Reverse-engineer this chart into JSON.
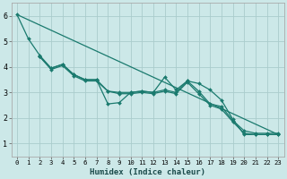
{
  "xlabel": "Humidex (Indice chaleur)",
  "bg_color": "#cce8e8",
  "grid_color": "#aacccc",
  "line_color": "#1a7a6e",
  "xlim": [
    -0.5,
    23.5
  ],
  "ylim": [
    0.5,
    6.5
  ],
  "yticks": [
    1,
    2,
    3,
    4,
    5,
    6
  ],
  "xticks": [
    0,
    1,
    2,
    3,
    4,
    5,
    6,
    7,
    8,
    9,
    10,
    11,
    12,
    13,
    14,
    15,
    16,
    17,
    18,
    19,
    20,
    21,
    22,
    23
  ],
  "series": [
    {
      "x": [
        0,
        1,
        2,
        3,
        4,
        5,
        6,
        7,
        8,
        9,
        10,
        11,
        12,
        13,
        14,
        15,
        16,
        17,
        18,
        19,
        20,
        21,
        22,
        23
      ],
      "y": [
        6.05,
        5.1,
        4.45,
        3.95,
        4.1,
        3.7,
        3.5,
        3.5,
        2.55,
        2.6,
        3.0,
        3.05,
        3.0,
        3.6,
        3.1,
        3.45,
        3.35,
        3.1,
        2.7,
        1.95,
        1.35,
        1.35,
        1.35,
        1.35
      ],
      "marker": "D",
      "markersize": 2.0,
      "linewidth": 0.9
    },
    {
      "x": [
        2,
        3,
        4,
        5,
        6,
        7,
        8,
        9,
        10,
        11,
        12,
        13,
        14,
        15,
        16,
        17,
        18,
        19,
        20,
        21,
        22,
        23
      ],
      "y": [
        4.4,
        3.9,
        4.05,
        3.65,
        3.45,
        3.45,
        3.05,
        2.95,
        2.95,
        3.0,
        2.95,
        3.05,
        2.95,
        3.4,
        2.95,
        2.5,
        2.35,
        1.85,
        1.4,
        1.35,
        1.35,
        1.35
      ],
      "marker": "D",
      "markersize": 2.0,
      "linewidth": 0.9
    },
    {
      "x": [
        2,
        3,
        4,
        5,
        6,
        7,
        8,
        9,
        10,
        11,
        12,
        13,
        14,
        15,
        16,
        17,
        18,
        19,
        20,
        21,
        22,
        23
      ],
      "y": [
        4.4,
        3.95,
        4.1,
        3.7,
        3.5,
        3.5,
        3.05,
        3.0,
        3.0,
        3.05,
        3.0,
        3.1,
        3.0,
        3.45,
        3.05,
        2.55,
        2.45,
        1.9,
        1.5,
        1.4,
        1.4,
        1.4
      ],
      "marker": "D",
      "markersize": 2.0,
      "linewidth": 0.9
    },
    {
      "x": [
        0,
        23
      ],
      "y": [
        6.05,
        1.35
      ],
      "marker": null,
      "markersize": 0,
      "linewidth": 0.9
    }
  ]
}
